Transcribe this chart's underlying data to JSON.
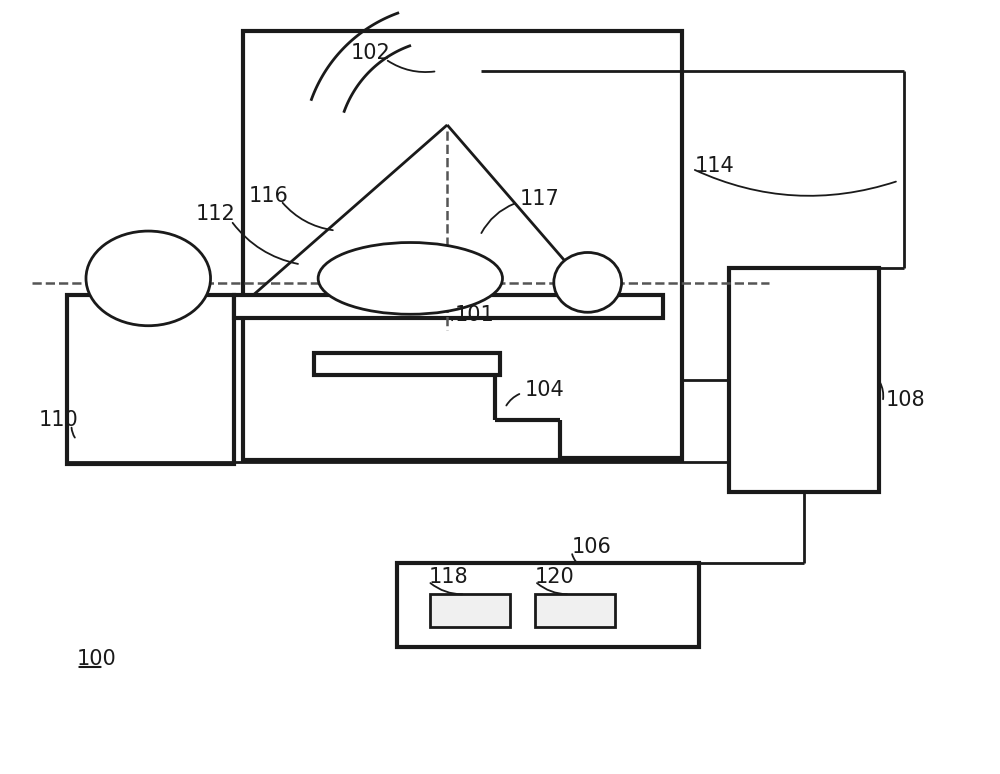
{
  "bg_color": "#ffffff",
  "lc": "#1a1a1a",
  "lw": 2.0,
  "lwt": 3.0,
  "fig_w": 10.0,
  "fig_h": 7.74,
  "dpi": 100
}
